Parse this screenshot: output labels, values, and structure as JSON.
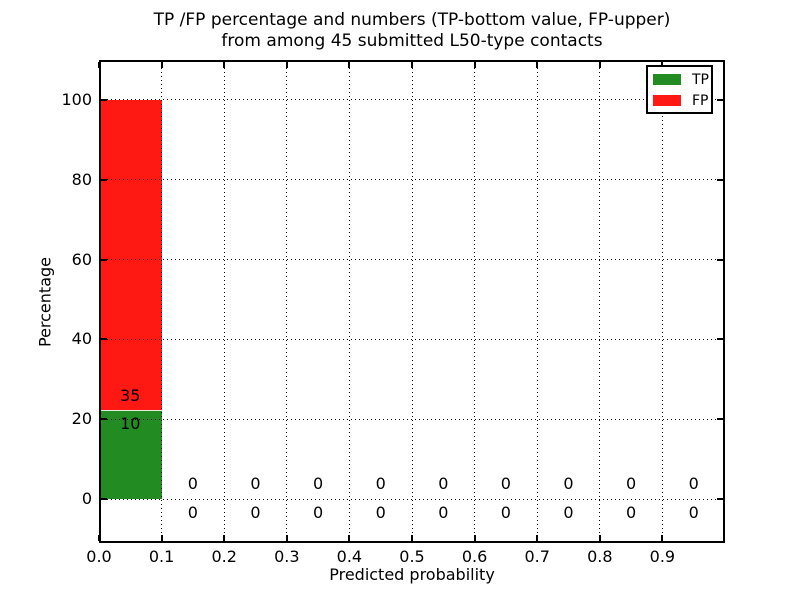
{
  "figure": {
    "title_line1": "TP /FP percentage and numbers (TP-bottom value, FP-upper)",
    "title_line2": "from among 45 submitted L50-type contacts",
    "xlabel": "Predicted probability",
    "ylabel": "Percentage"
  },
  "chart_data": {
    "type": "bar",
    "stacked": true,
    "title": "TP /FP percentage and numbers (TP-bottom value, FP-upper)\nfrom among 45 submitted L50-type contacts",
    "xlabel": "Predicted probability",
    "ylabel": "Percentage",
    "total_contacts": 45,
    "bins": [
      0.0,
      0.1,
      0.2,
      0.3,
      0.4,
      0.5,
      0.6,
      0.7,
      0.8,
      0.9
    ],
    "bin_width": 0.1,
    "categories": [
      "0.0-0.1",
      "0.1-0.2",
      "0.2-0.3",
      "0.3-0.4",
      "0.4-0.5",
      "0.5-0.6",
      "0.6-0.7",
      "0.7-0.8",
      "0.8-0.9",
      "0.9-1.0"
    ],
    "series": [
      {
        "name": "TP",
        "color": "#228B22",
        "counts": [
          10,
          0,
          0,
          0,
          0,
          0,
          0,
          0,
          0,
          0
        ],
        "percentages": [
          22.22,
          0,
          0,
          0,
          0,
          0,
          0,
          0,
          0,
          0
        ]
      },
      {
        "name": "FP",
        "color": "#ff1912",
        "counts": [
          35,
          0,
          0,
          0,
          0,
          0,
          0,
          0,
          0,
          0
        ],
        "percentages": [
          77.78,
          0,
          0,
          0,
          0,
          0,
          0,
          0,
          0,
          0
        ]
      }
    ],
    "value_label_rule": "FP count shown just above TP/FP boundary, TP count just below",
    "xlim": [
      0.0,
      1.0
    ],
    "ylim": [
      -11,
      110
    ],
    "xticks": [
      "0.0",
      "0.1",
      "0.2",
      "0.3",
      "0.4",
      "0.5",
      "0.6",
      "0.7",
      "0.8",
      "0.9"
    ],
    "yticks": [
      0,
      20,
      40,
      60,
      80,
      100
    ],
    "grid": {
      "visible": true,
      "style": "dotted",
      "color": "#000000",
      "above_bars": true
    },
    "legend": {
      "position": "upper right",
      "entries": [
        {
          "label": "TP",
          "color": "#228B22"
        },
        {
          "label": "FP",
          "color": "#ff1912"
        }
      ]
    }
  },
  "colors": {
    "background": "#ffffff",
    "axes": "#000000",
    "tp": "#228B22",
    "fp": "#ff1912"
  }
}
